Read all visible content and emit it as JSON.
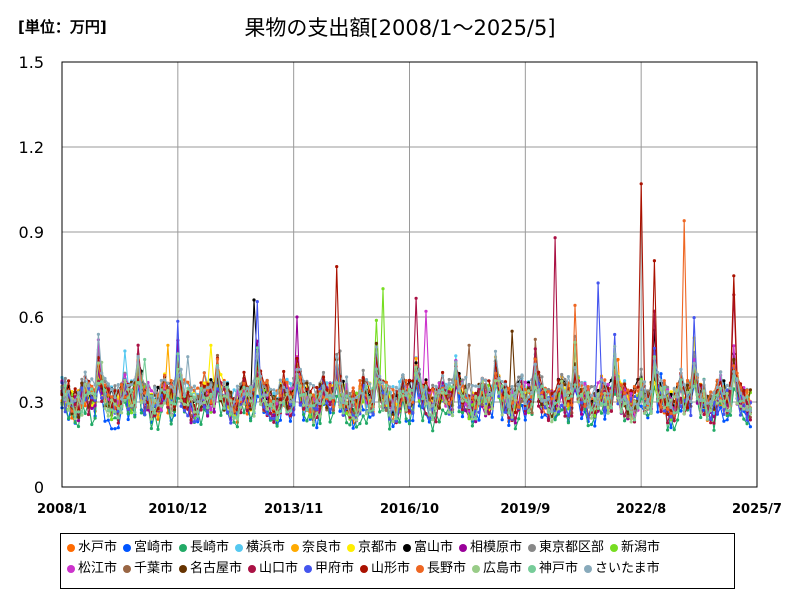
{
  "header": {
    "unit_label": "[単位：万円]",
    "title": "果物の支出額[2008/1～2025/5]"
  },
  "chart_data": {
    "type": "line",
    "title": "果物の支出額[2008/1～2025/5]",
    "unit": "[単位：万円]",
    "x_start": "2008/1",
    "x_end": "2025/7",
    "data_end": "2025/5",
    "ylim": [
      0,
      1.5
    ],
    "y_ticks": [
      "0",
      "0.3",
      "0.6",
      "0.9",
      "1.2",
      "1.5"
    ],
    "x_ticks": [
      "2008/1",
      "2010/12",
      "2013/11",
      "2016/10",
      "2019/9",
      "2022/8",
      "2025/7"
    ],
    "grid": true,
    "legend_position": "bottom",
    "series": [
      {
        "name": "水戸市",
        "color": "#ff6a00",
        "level": 0.3,
        "peak": 0.45
      },
      {
        "name": "宮崎市",
        "color": "#0055ff",
        "level": 0.28,
        "peak": 0.4
      },
      {
        "name": "長崎市",
        "color": "#22aa66",
        "level": 0.27,
        "peak": 0.38
      },
      {
        "name": "横浜市",
        "color": "#55c8f0",
        "level": 0.33,
        "peak": 0.48
      },
      {
        "name": "奈良市",
        "color": "#ffaa00",
        "level": 0.32,
        "peak": 0.5
      },
      {
        "name": "京都市",
        "color": "#ffee00",
        "level": 0.32,
        "peak": 0.5
      },
      {
        "name": "富山市",
        "color": "#000000",
        "level": 0.33,
        "peak": 0.66
      },
      {
        "name": "相模原市",
        "color": "#990099",
        "level": 0.3,
        "peak": 0.6
      },
      {
        "name": "東京都区部",
        "color": "#888888",
        "level": 0.34,
        "peak": 0.48
      },
      {
        "name": "新潟市",
        "color": "#77dd22",
        "level": 0.31,
        "peak": 0.7
      },
      {
        "name": "松江市",
        "color": "#cc33cc",
        "level": 0.32,
        "peak": 0.62
      },
      {
        "name": "千葉市",
        "color": "#996644",
        "level": 0.31,
        "peak": 0.5
      },
      {
        "name": "名古屋市",
        "color": "#663300",
        "level": 0.32,
        "peak": 0.55
      },
      {
        "name": "山口市",
        "color": "#aa1144",
        "level": 0.3,
        "peak": 0.88
      },
      {
        "name": "甲府市",
        "color": "#4455ee",
        "level": 0.3,
        "peak": 0.72
      },
      {
        "name": "山形市",
        "color": "#aa1100",
        "level": 0.33,
        "peak": 1.07
      },
      {
        "name": "長野市",
        "color": "#ee6622",
        "level": 0.33,
        "peak": 0.94
      },
      {
        "name": "広島市",
        "color": "#99cc88",
        "level": 0.3,
        "peak": 0.44
      },
      {
        "name": "神戸市",
        "color": "#77cc99",
        "level": 0.31,
        "peak": 0.45
      },
      {
        "name": "さいたま市",
        "color": "#88aabb",
        "level": 0.34,
        "peak": 0.46
      }
    ]
  }
}
